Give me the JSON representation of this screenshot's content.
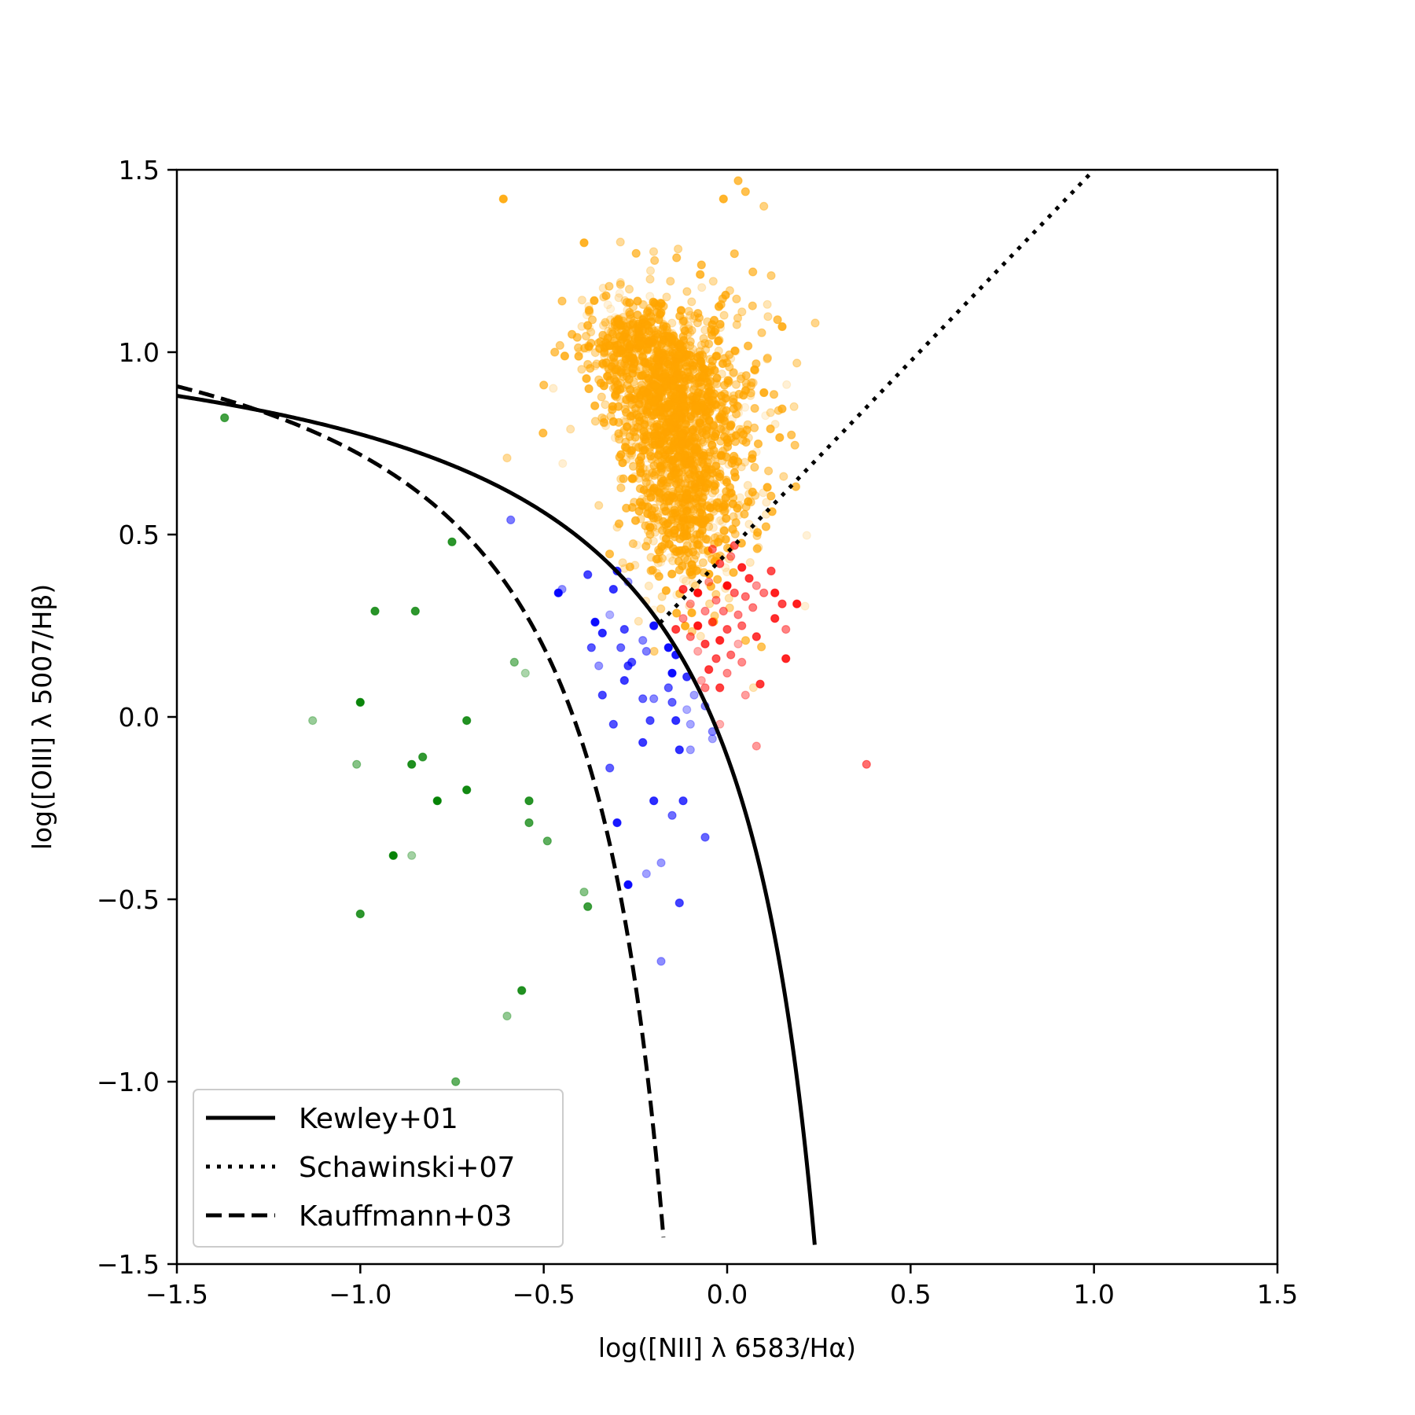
{
  "chart_data": {
    "type": "scatter",
    "title": "",
    "xlabel": "log([NII] λ 6583/Hα)",
    "ylabel": "log([OIII] λ 5007/Hβ)",
    "xlim": [
      -1.5,
      1.5
    ],
    "ylim": [
      -1.5,
      1.5
    ],
    "xticks": [
      -1.5,
      -1.0,
      -0.5,
      0.0,
      0.5,
      1.0,
      1.5
    ],
    "yticks": [
      -1.5,
      -1.0,
      -0.5,
      0.0,
      0.5,
      1.0,
      1.5
    ],
    "xtick_labels": [
      "−1.5",
      "−1.0",
      "−0.5",
      "0.0",
      "0.5",
      "1.0",
      "1.5"
    ],
    "ytick_labels": [
      "−1.5",
      "−1.0",
      "−0.5",
      "0.0",
      "0.5",
      "1.0",
      "1.5"
    ],
    "grid": false,
    "legend_position": "bottom-left",
    "lines": [
      {
        "name": "Kewley+01",
        "style": "solid",
        "color": "#000000"
      },
      {
        "name": "Schawinski+07",
        "style": "dotted",
        "color": "#000000"
      },
      {
        "name": "Kauffmann+03",
        "style": "dashed",
        "color": "#000000"
      }
    ],
    "scatter_groups": [
      {
        "color": "#008000",
        "points": [
          [
            -1.37,
            0.82
          ],
          [
            -0.75,
            0.48
          ],
          [
            -0.96,
            0.29
          ],
          [
            -0.85,
            0.29
          ],
          [
            -0.58,
            0.15
          ],
          [
            -0.55,
            0.12
          ],
          [
            -1.0,
            0.04
          ],
          [
            -1.13,
            -0.01
          ],
          [
            -0.71,
            -0.01
          ],
          [
            -1.01,
            -0.13
          ],
          [
            -0.83,
            -0.11
          ],
          [
            -0.86,
            -0.13
          ],
          [
            -0.71,
            -0.2
          ],
          [
            -0.79,
            -0.23
          ],
          [
            -0.54,
            -0.23
          ],
          [
            -0.54,
            -0.29
          ],
          [
            -0.49,
            -0.34
          ],
          [
            -0.91,
            -0.38
          ],
          [
            -0.86,
            -0.38
          ],
          [
            -0.39,
            -0.48
          ],
          [
            -0.38,
            -0.52
          ],
          [
            -1.0,
            -0.54
          ],
          [
            -0.56,
            -0.75
          ],
          [
            -0.6,
            -0.82
          ],
          [
            -0.74,
            -1.0
          ]
        ]
      },
      {
        "color": "#0000ff",
        "points": [
          [
            -0.59,
            0.54
          ],
          [
            -0.45,
            0.35
          ],
          [
            -0.46,
            0.34
          ],
          [
            -0.38,
            0.39
          ],
          [
            -0.3,
            0.4
          ],
          [
            -0.27,
            0.37
          ],
          [
            -0.31,
            0.35
          ],
          [
            -0.32,
            0.28
          ],
          [
            -0.36,
            0.26
          ],
          [
            -0.34,
            0.23
          ],
          [
            -0.28,
            0.24
          ],
          [
            -0.23,
            0.21
          ],
          [
            -0.29,
            0.19
          ],
          [
            -0.22,
            0.18
          ],
          [
            -0.16,
            0.19
          ],
          [
            -0.2,
            0.25
          ],
          [
            -0.14,
            0.17
          ],
          [
            -0.26,
            0.15
          ],
          [
            -0.27,
            0.14
          ],
          [
            -0.15,
            0.12
          ],
          [
            -0.11,
            0.11
          ],
          [
            -0.16,
            0.08
          ],
          [
            -0.28,
            0.1
          ],
          [
            -0.35,
            0.14
          ],
          [
            -0.37,
            0.19
          ],
          [
            -0.34,
            0.06
          ],
          [
            -0.23,
            0.05
          ],
          [
            -0.2,
            0.05
          ],
          [
            -0.15,
            0.04
          ],
          [
            -0.09,
            0.06
          ],
          [
            -0.06,
            0.03
          ],
          [
            -0.11,
            0.02
          ],
          [
            -0.1,
            -0.02
          ],
          [
            -0.04,
            -0.04
          ],
          [
            -0.14,
            -0.01
          ],
          [
            -0.21,
            -0.01
          ],
          [
            -0.31,
            -0.02
          ],
          [
            -0.04,
            -0.06
          ],
          [
            -0.23,
            -0.07
          ],
          [
            -0.1,
            -0.09
          ],
          [
            -0.13,
            -0.09
          ],
          [
            -0.32,
            -0.14
          ],
          [
            -0.2,
            -0.23
          ],
          [
            -0.12,
            -0.23
          ],
          [
            -0.15,
            -0.27
          ],
          [
            -0.3,
            -0.29
          ],
          [
            -0.06,
            -0.33
          ],
          [
            -0.18,
            -0.4
          ],
          [
            -0.22,
            -0.43
          ],
          [
            -0.27,
            -0.46
          ],
          [
            -0.13,
            -0.51
          ],
          [
            -0.18,
            -0.67
          ]
        ]
      },
      {
        "color": "#ff0000",
        "points": [
          [
            -0.02,
            0.42
          ],
          [
            0.01,
            0.44
          ],
          [
            0.04,
            0.41
          ],
          [
            0.06,
            0.38
          ],
          [
            0.0,
            0.36
          ],
          [
            -0.05,
            0.37
          ],
          [
            -0.08,
            0.34
          ],
          [
            -0.03,
            0.32
          ],
          [
            0.02,
            0.34
          ],
          [
            0.05,
            0.33
          ],
          [
            0.08,
            0.36
          ],
          [
            0.1,
            0.34
          ],
          [
            -0.1,
            0.31
          ],
          [
            -0.06,
            0.29
          ],
          [
            -0.01,
            0.29
          ],
          [
            0.03,
            0.28
          ],
          [
            0.07,
            0.3
          ],
          [
            -0.12,
            0.27
          ],
          [
            -0.08,
            0.25
          ],
          [
            -0.04,
            0.26
          ],
          [
            0.0,
            0.24
          ],
          [
            0.04,
            0.25
          ],
          [
            -0.14,
            0.24
          ],
          [
            -0.1,
            0.22
          ],
          [
            -0.06,
            0.2
          ],
          [
            -0.02,
            0.21
          ],
          [
            0.03,
            0.2
          ],
          [
            0.08,
            0.22
          ],
          [
            -0.08,
            0.18
          ],
          [
            -0.03,
            0.16
          ],
          [
            0.01,
            0.17
          ],
          [
            0.04,
            0.15
          ],
          [
            -0.05,
            0.13
          ],
          [
            0.0,
            0.12
          ],
          [
            -0.07,
            0.1
          ],
          [
            -0.02,
            0.08
          ],
          [
            -0.06,
            0.08
          ],
          [
            0.05,
            0.06
          ],
          [
            -0.02,
            -0.02
          ],
          [
            0.15,
            0.31
          ],
          [
            0.13,
            0.27
          ],
          [
            0.16,
            0.24
          ],
          [
            0.13,
            0.34
          ],
          [
            0.19,
            0.31
          ],
          [
            0.16,
            0.16
          ],
          [
            0.09,
            0.09
          ],
          [
            0.08,
            -0.08
          ],
          [
            0.38,
            -0.13
          ],
          [
            0.12,
            0.4
          ],
          [
            -0.12,
            0.35
          ],
          [
            0.02,
            0.47
          ],
          [
            -0.04,
            0.46
          ]
        ]
      },
      {
        "color": "#ffa500",
        "clusters": [
          {
            "cx": -0.16,
            "cy": 0.88,
            "sx": 0.085,
            "sy": 0.12,
            "n": 900
          },
          {
            "cx": -0.11,
            "cy": 0.62,
            "sx": 0.07,
            "sy": 0.15,
            "n": 650
          },
          {
            "cx": -0.27,
            "cy": 1.02,
            "sx": 0.06,
            "sy": 0.07,
            "n": 300
          },
          {
            "cx": -0.05,
            "cy": 0.76,
            "sx": 0.11,
            "sy": 0.22,
            "n": 250
          }
        ],
        "outliers": [
          [
            -0.61,
            1.42
          ],
          [
            -0.39,
            1.3
          ],
          [
            0.1,
            1.4
          ],
          [
            0.03,
            1.47
          ],
          [
            0.24,
            1.08
          ],
          [
            -0.6,
            0.71
          ],
          [
            -0.45,
            1.14
          ],
          [
            -0.35,
            0.58
          ],
          [
            0.12,
            1.21
          ],
          [
            0.07,
            1.22
          ],
          [
            0.15,
            1.07
          ],
          [
            0.19,
            0.97
          ],
          [
            0.02,
            1.27
          ],
          [
            -0.01,
            1.42
          ],
          [
            0.05,
            1.44
          ],
          [
            -0.47,
            1.0
          ],
          [
            -0.5,
            0.91
          ],
          [
            -0.3,
            0.52
          ],
          [
            -0.21,
            1.2
          ],
          [
            0.14,
            0.84
          ]
        ]
      }
    ]
  }
}
